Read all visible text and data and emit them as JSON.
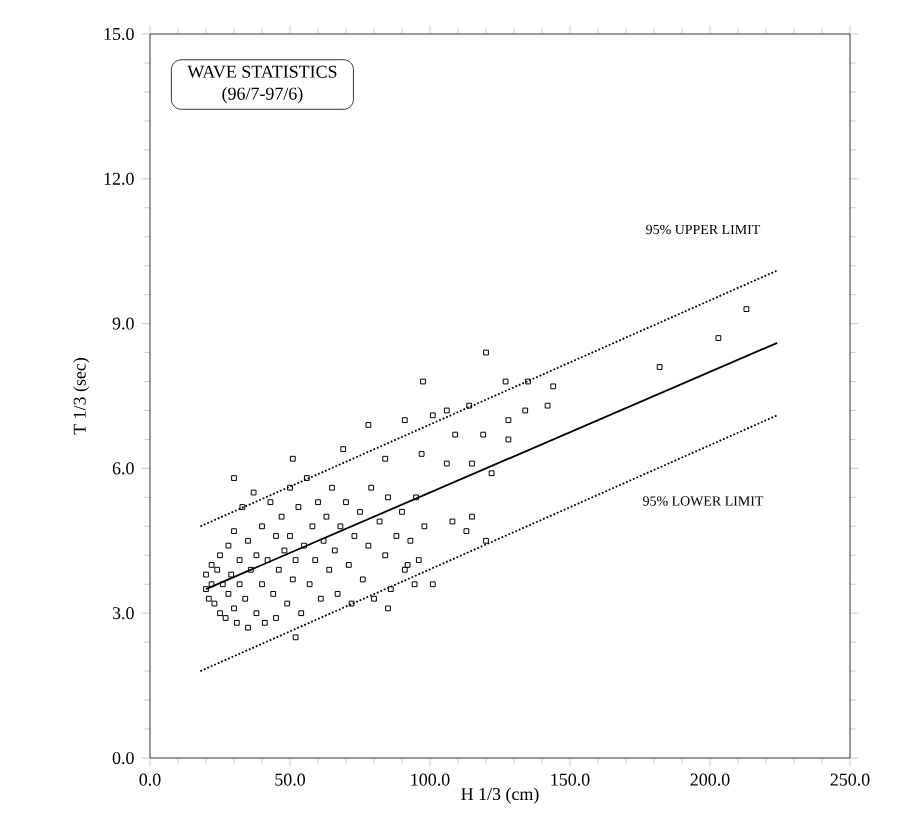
{
  "chart_data": {
    "type": "scatter",
    "title": "WAVE STATISTICS",
    "subtitle": "(96/7-97/6)",
    "xlabel": "H 1/3 (cm)",
    "ylabel": "T 1/3 (sec)",
    "xlim": [
      0,
      250
    ],
    "ylim": [
      0,
      15
    ],
    "xticks": [
      {
        "value": 0,
        "label": "0.0"
      },
      {
        "value": 50,
        "label": "50.0"
      },
      {
        "value": 100,
        "label": "100.0"
      },
      {
        "value": 150,
        "label": "150.0"
      },
      {
        "value": 200,
        "label": "200.0"
      },
      {
        "value": 250,
        "label": "250.0"
      }
    ],
    "yticks": [
      {
        "value": 0,
        "label": "0.0"
      },
      {
        "value": 3,
        "label": "3.0"
      },
      {
        "value": 6,
        "label": "6.0"
      },
      {
        "value": 9,
        "label": "9.0"
      },
      {
        "value": 12,
        "label": "12.0"
      },
      {
        "value": 15,
        "label": "15.0"
      }
    ],
    "grid": false,
    "annotations": [
      "95% UPPER LIMIT",
      "95% LOWER LIMIT"
    ],
    "series": [
      {
        "color": "#000000",
        "marker": "square",
        "x": [
          20,
          20,
          21,
          22,
          22,
          23,
          24,
          25,
          25,
          26,
          27,
          28,
          28,
          29,
          30,
          30,
          31,
          32,
          32,
          33,
          34,
          35,
          35,
          36,
          37,
          38,
          38,
          40,
          40,
          41,
          42,
          43,
          44,
          45,
          45,
          46,
          47,
          48,
          49,
          50,
          50,
          51,
          52,
          53,
          54,
          55,
          56,
          57,
          58,
          59,
          60,
          61,
          62,
          63,
          64,
          65,
          66,
          67,
          68,
          70,
          71,
          72,
          73,
          75,
          76,
          78,
          79,
          80,
          82,
          84,
          85,
          86,
          88,
          90,
          91,
          93,
          95,
          96,
          98,
          213,
          203,
          182,
          120,
          97.5,
          127,
          135,
          144,
          142,
          134,
          128,
          114,
          106,
          101,
          91,
          78,
          119,
          109,
          128,
          106,
          115,
          122,
          97,
          84,
          69,
          51,
          30,
          108,
          115,
          113,
          101,
          94.5,
          85,
          52,
          92,
          120
        ],
        "values": [
          3.5,
          3.8,
          3.3,
          4.0,
          3.6,
          3.2,
          3.9,
          3.0,
          4.2,
          3.6,
          2.9,
          3.4,
          4.4,
          3.8,
          3.1,
          4.7,
          2.8,
          3.6,
          4.1,
          5.2,
          3.3,
          2.7,
          4.5,
          3.9,
          5.5,
          3.0,
          4.2,
          3.6,
          4.8,
          2.8,
          4.1,
          5.3,
          3.4,
          4.6,
          2.9,
          3.9,
          5.0,
          4.3,
          3.2,
          4.6,
          5.6,
          3.7,
          4.1,
          5.2,
          3.0,
          4.4,
          5.8,
          3.6,
          4.8,
          4.1,
          5.3,
          3.3,
          4.5,
          5.0,
          3.9,
          5.6,
          4.3,
          3.4,
          4.8,
          5.3,
          4.0,
          3.2,
          4.6,
          5.1,
          3.7,
          4.4,
          5.6,
          3.3,
          4.9,
          4.2,
          5.4,
          3.5,
          4.6,
          5.1,
          3.9,
          4.5,
          5.4,
          4.1,
          4.8,
          9.3,
          8.7,
          8.1,
          8.4,
          7.8,
          7.8,
          7.8,
          7.7,
          7.3,
          7.2,
          7.0,
          7.3,
          7.2,
          7.1,
          7.0,
          6.9,
          6.7,
          6.7,
          6.6,
          6.1,
          6.1,
          5.9,
          6.3,
          6.2,
          6.4,
          6.2,
          5.8,
          4.9,
          5.0,
          4.7,
          3.6,
          3.6,
          3.1,
          2.5,
          4.0,
          4.5
        ]
      },
      {
        "type": "line",
        "color": "#000000",
        "marker": "none",
        "line_style": "solid",
        "x": [
          20,
          224
        ],
        "values": [
          3.5,
          8.6
        ]
      },
      {
        "type": "line",
        "color": "#000000",
        "marker": "none",
        "line_style": "dotted",
        "x": [
          18,
          224
        ],
        "values": [
          4.8,
          10.1
        ]
      },
      {
        "type": "line",
        "color": "#000000",
        "marker": "none",
        "line_style": "dotted",
        "x": [
          18,
          224
        ],
        "values": [
          1.8,
          7.1
        ]
      }
    ]
  }
}
